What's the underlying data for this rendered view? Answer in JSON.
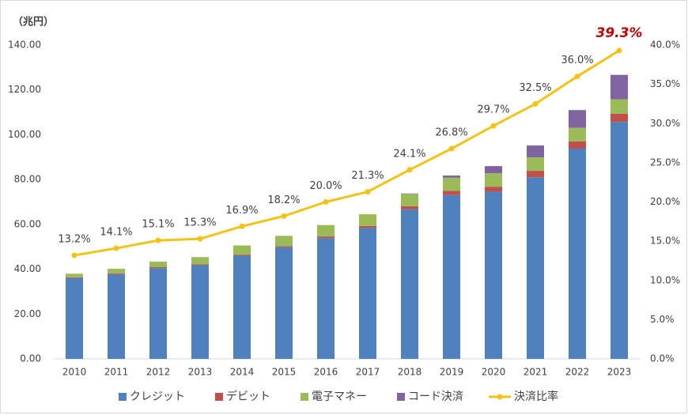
{
  "chart_data": {
    "type": "bar",
    "stacked": true,
    "y_label": "（兆円）",
    "categories": [
      "2010",
      "2011",
      "2012",
      "2013",
      "2014",
      "2015",
      "2016",
      "2017",
      "2018",
      "2019",
      "2020",
      "2021",
      "2022",
      "2023"
    ],
    "ylim": [
      0,
      140
    ],
    "yticks": [
      {
        "value": 0,
        "label": "0.00"
      },
      {
        "value": 20,
        "label": "20.00"
      },
      {
        "value": 40,
        "label": "40.00"
      },
      {
        "value": 60,
        "label": "60.00"
      },
      {
        "value": 80,
        "label": "80.00"
      },
      {
        "value": 100,
        "label": "100.00"
      },
      {
        "value": 120,
        "label": "120.00"
      },
      {
        "value": 140,
        "label": "140.00"
      }
    ],
    "y2lim": [
      0,
      40
    ],
    "y2ticks": [
      {
        "value": 0,
        "label": "0.0%"
      },
      {
        "value": 5,
        "label": "5.0%"
      },
      {
        "value": 10,
        "label": "10.0%"
      },
      {
        "value": 15,
        "label": "15.0%"
      },
      {
        "value": 20,
        "label": "20.0%"
      },
      {
        "value": 25,
        "label": "25.0%"
      },
      {
        "value": 30,
        "label": "30.0%"
      },
      {
        "value": 35,
        "label": "35.0%"
      },
      {
        "value": 40,
        "label": "40.0%"
      }
    ],
    "legend": "bottom",
    "series": [
      {
        "name": "クレジット",
        "type": "bar",
        "color": "#4f81bd",
        "values": [
          36.0,
          37.8,
          40.5,
          41.8,
          46.0,
          49.8,
          53.9,
          58.4,
          66.7,
          73.1,
          74.6,
          81.0,
          93.8,
          105.7
        ]
      },
      {
        "name": "デビット",
        "type": "bar",
        "color": "#c0504d",
        "values": [
          0.4,
          0.4,
          0.4,
          0.4,
          0.5,
          0.5,
          0.7,
          0.9,
          1.4,
          1.9,
          2.2,
          2.9,
          3.2,
          3.7
        ]
      },
      {
        "name": "電子マネー",
        "type": "bar",
        "color": "#9bbb59",
        "values": [
          1.6,
          2.0,
          2.5,
          3.2,
          4.1,
          4.6,
          5.1,
          5.2,
          5.5,
          5.8,
          6.0,
          6.0,
          6.1,
          6.4
        ]
      },
      {
        "name": "コード決済",
        "type": "bar",
        "color": "#8064a2",
        "values": [
          0,
          0,
          0,
          0,
          0,
          0,
          0,
          0,
          0.2,
          1.0,
          3.2,
          5.3,
          7.9,
          10.9
        ]
      },
      {
        "name": "決済比率",
        "type": "line",
        "axis": "y2",
        "color": "#f2c314",
        "values": [
          13.2,
          14.1,
          15.1,
          15.3,
          16.9,
          18.2,
          20.0,
          21.3,
          24.1,
          26.8,
          29.7,
          32.5,
          36.0,
          39.3
        ],
        "value_labels": [
          "13.2%",
          "14.1%",
          "15.1%",
          "15.3%",
          "16.9%",
          "18.2%",
          "20.0%",
          "21.3%",
          "24.1%",
          "26.8%",
          "29.7%",
          "32.5%",
          "36.0%",
          "39.3%"
        ]
      }
    ]
  }
}
